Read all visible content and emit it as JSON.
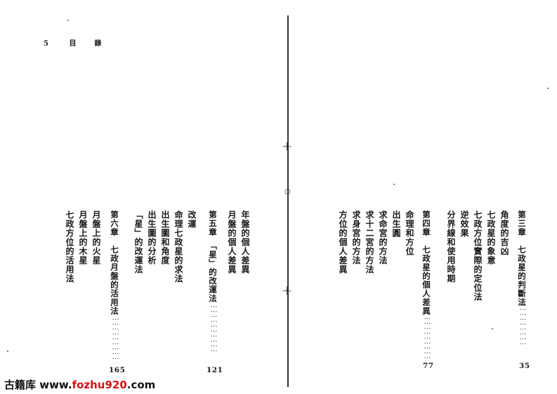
{
  "header": {
    "page_number": "5",
    "title": "目　錄"
  },
  "chapters": [
    {
      "heading": "第三章　七政星的判斷法",
      "page": "35",
      "items": [
        "角度的吉凶",
        "七政星的象意",
        "七政方位實際的定位法",
        "逆效果",
        "分界線和使用時期"
      ]
    },
    {
      "heading": "第四章　七政星的個人差異",
      "page": "77",
      "items": [
        "命理和方位",
        "出生圓",
        "求命宮的方法",
        "求十二宮的方法",
        "求身宮的方法",
        "方位的個人差異"
      ]
    },
    {
      "heading": "第五章　「星」的改運法",
      "page": "121",
      "items": [
        "年盤的個人差異",
        "月盤的個人差異",
        "改運",
        "命理七政星的求法",
        "出生圖和角度",
        "出生圖的分析",
        "「星」的改運法"
      ]
    },
    {
      "heading": "第六章　七政月盤的活用法",
      "page": "165",
      "items": [
        "月盤上的火星",
        "月盤上的木星",
        "七政方位的活用法"
      ]
    }
  ],
  "watermark": {
    "prefix": "古籍库 www.",
    "accent": "fozhu920",
    "suffix": ".com"
  }
}
